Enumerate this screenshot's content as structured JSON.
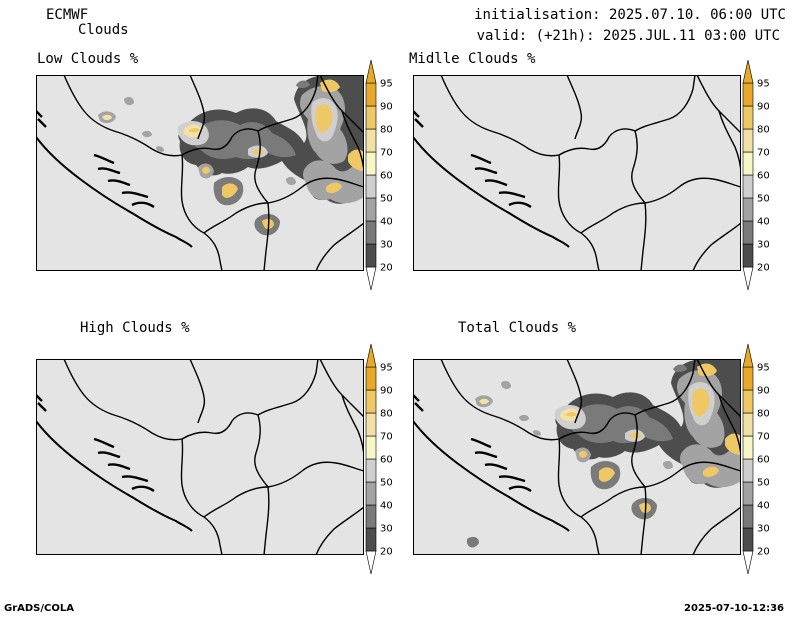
{
  "header": {
    "model": "ECMWF",
    "field": "Clouds",
    "init_text": "initialisation: 2025.07.10. 06:00 UTC",
    "valid_text": "valid: (+21h): 2025.JUL.11 03:00 UTC"
  },
  "panels": [
    {
      "title": "Low Clouds %"
    },
    {
      "title": "Midlle Clouds %"
    },
    {
      "title": "High Clouds %"
    },
    {
      "title": "Total Clouds %"
    }
  ],
  "colorbar": {
    "levels": [
      "20",
      "30",
      "40",
      "50",
      "60",
      "70",
      "80",
      "90",
      "95"
    ],
    "colors": [
      "#ffffff",
      "#4d4d4d",
      "#7a7a7a",
      "#a3a3a3",
      "#cfcfcf",
      "#f7f7c6",
      "#f2e1a6",
      "#efc866",
      "#e8a92a",
      "#e8a92a"
    ]
  },
  "footer": {
    "left": "GrADS/COLA",
    "right": "2025-07-10-12:36"
  }
}
